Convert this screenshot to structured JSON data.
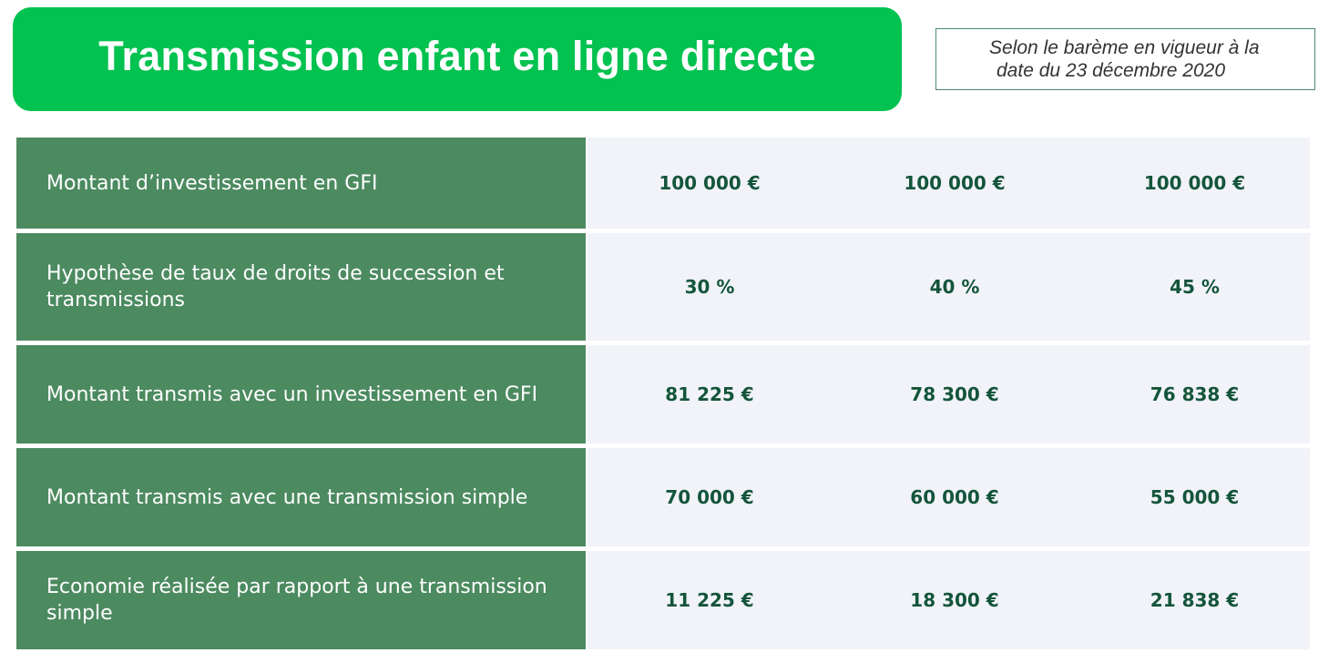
{
  "title": "Transmission enfant en ligne directe",
  "note": {
    "line1": "Selon le barème en vigueur à la",
    "line2": "date du 23 décembre 2020"
  },
  "rows": [
    {
      "label": "Montant d’investissement en GFI",
      "values": [
        "100 000 €",
        "100 000 €",
        "100 000 €"
      ]
    },
    {
      "label": "Hypothèse de taux de droits de succession et transmissions",
      "values": [
        "30 %",
        "40 %",
        "45 %"
      ]
    },
    {
      "label": "Montant transmis avec un investissement en GFI",
      "values": [
        "81 225 €",
        "78 300 €",
        "76 838 €"
      ]
    },
    {
      "label": "Montant transmis avec une transmission simple",
      "values": [
        "70 000 €",
        "60 000 €",
        "55 000 €"
      ]
    },
    {
      "label": "Economie réalisée par rapport à une transmission simple",
      "values": [
        "11 225 €",
        "18 300 €",
        "21 838 €"
      ]
    }
  ],
  "colors": {
    "title_banner": "#02c250",
    "label_column": "#4c8a60",
    "values_background": "#f1f3f8",
    "value_text": "#14553b"
  }
}
